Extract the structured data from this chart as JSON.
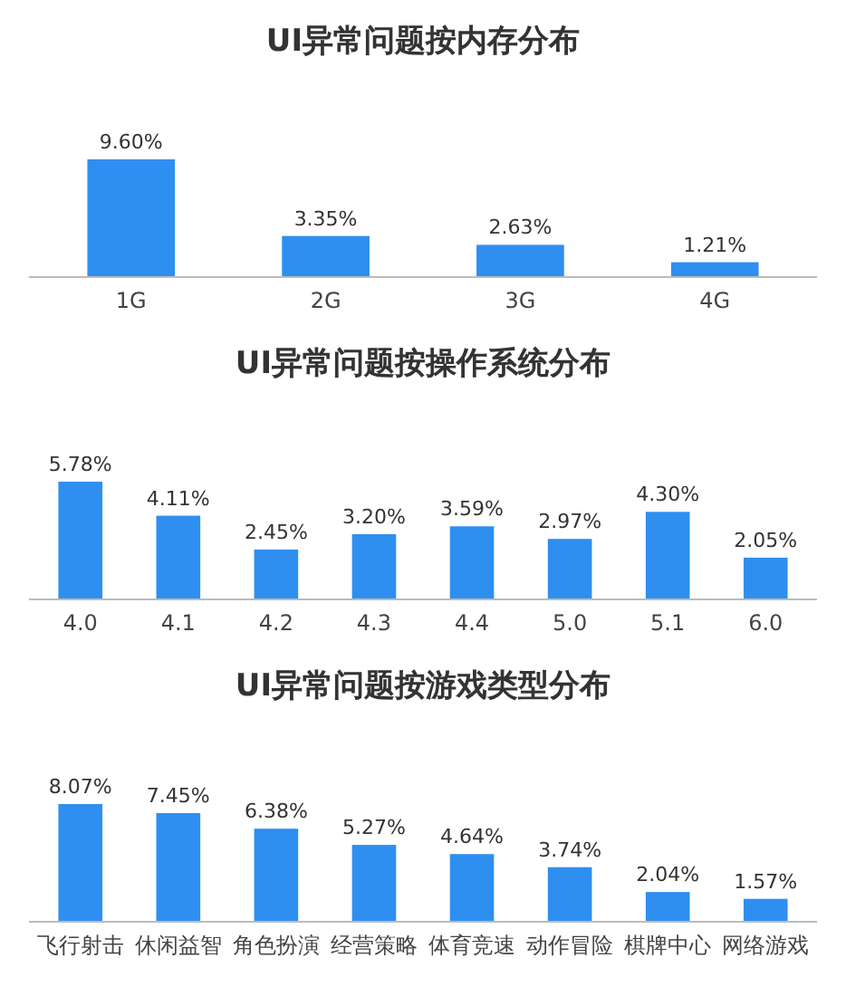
{
  "chart_data": [
    {
      "type": "bar",
      "title": "UI异常问题按内存分布",
      "categories": [
        "1G",
        "2G",
        "3G",
        "4G"
      ],
      "values": [
        9.6,
        3.35,
        2.63,
        1.21
      ],
      "value_labels": [
        "9.60%",
        "3.35%",
        "2.63%",
        "1.21%"
      ],
      "color": "#2e8ff0"
    },
    {
      "type": "bar",
      "title": "UI异常问题按操作系统分布",
      "categories": [
        "4.0",
        "4.1",
        "4.2",
        "4.3",
        "4.4",
        "5.0",
        "5.1",
        "6.0"
      ],
      "values": [
        5.78,
        4.11,
        2.45,
        3.2,
        3.59,
        2.97,
        4.3,
        2.05
      ],
      "value_labels": [
        "5.78%",
        "4.11%",
        "2.45%",
        "3.20%",
        "3.59%",
        "2.97%",
        "4.30%",
        "2.05%"
      ],
      "color": "#2e8ff0"
    },
    {
      "type": "bar",
      "title": "UI异常问题按游戏类型分布",
      "categories": [
        "飞行射击",
        "休闲益智",
        "角色扮演",
        "经营策略",
        "体育竞速",
        "动作冒险",
        "棋牌中心",
        "网络游戏"
      ],
      "values": [
        8.07,
        7.45,
        6.38,
        5.27,
        4.64,
        3.74,
        2.04,
        1.57
      ],
      "value_labels": [
        "8.07%",
        "7.45%",
        "6.38%",
        "5.27%",
        "4.64%",
        "3.74%",
        "2.04%",
        "1.57%"
      ],
      "color": "#2e8ff0"
    }
  ]
}
